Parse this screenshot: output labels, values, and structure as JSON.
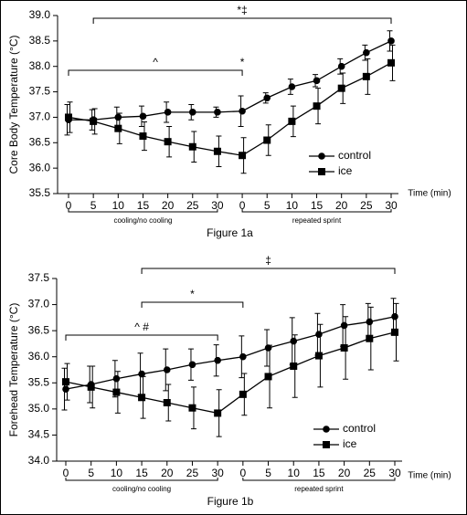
{
  "chart_data": [
    {
      "type": "line",
      "y_label": "Core Body Temperature (°C)",
      "x_label": "Time (min)",
      "caption": "Figure 1a",
      "categories": [
        "0",
        "5",
        "10",
        "15",
        "20",
        "25",
        "30",
        "0",
        "5",
        "10",
        "15",
        "20",
        "25",
        "30"
      ],
      "phases": [
        {
          "label": "cooling/no cooling"
        },
        {
          "label": "repeated sprint"
        }
      ],
      "ylim": [
        35.5,
        39.0
      ],
      "yticks": [
        35.5,
        {
          "value": 36.0,
          "label": "36.0"
        },
        36.5,
        {
          "value": 37.0,
          "label": "37.0"
        },
        37.5,
        {
          "value": 38.0,
          "label": "38.0"
        },
        38.5,
        {
          "value": 39.0,
          "label": "39.0"
        }
      ],
      "legend": "lower right",
      "series": [
        {
          "name": "control",
          "color": "#000000",
          "marker": "circle",
          "values": [
            36.95,
            36.95,
            37.0,
            37.02,
            37.1,
            37.1,
            37.1,
            37.12,
            37.38,
            37.6,
            37.72,
            38.0,
            38.27,
            38.5
          ],
          "errors": [
            0.3,
            0.2,
            0.2,
            0.2,
            0.2,
            0.15,
            0.1,
            0.3,
            0.1,
            0.15,
            0.12,
            0.15,
            0.15,
            0.2
          ]
        },
        {
          "name": "ice",
          "color": "#000000",
          "marker": "square",
          "values": [
            37.0,
            36.92,
            36.78,
            36.63,
            36.52,
            36.42,
            36.33,
            36.25,
            36.55,
            36.92,
            37.22,
            37.57,
            37.8,
            38.07
          ],
          "errors": [
            0.3,
            0.25,
            0.3,
            0.28,
            0.3,
            0.3,
            0.3,
            0.35,
            0.3,
            0.3,
            0.35,
            0.3,
            0.35,
            0.35
          ]
        }
      ],
      "annotations": [
        {
          "text": "*‡"
        },
        {
          "text": "^"
        },
        {
          "text": "*"
        }
      ]
    },
    {
      "type": "line",
      "y_label": "Forehead Temperature (°C)",
      "x_label": "Time (min)",
      "caption": "Figure 1b",
      "categories": [
        "0",
        "5",
        "10",
        "15",
        "20",
        "25",
        "30",
        "0",
        "5",
        "10",
        "15",
        "20",
        "25",
        "30"
      ],
      "phases": [
        {
          "label": "cooling/no cooling"
        },
        {
          "label": "repeated sprint"
        }
      ],
      "ylim": [
        34.0,
        37.5
      ],
      "yticks": [
        {
          "value": 34.0,
          "label": "34.0"
        },
        34.5,
        {
          "value": 35.0,
          "label": "35.0"
        },
        35.5,
        {
          "value": 36.0,
          "label": "36.0"
        },
        36.5,
        {
          "value": 37.0,
          "label": "37.0"
        },
        37.5
      ],
      "legend": "lower right",
      "series": [
        {
          "name": "control",
          "color": "#000000",
          "marker": "circle",
          "values": [
            35.38,
            35.47,
            35.58,
            35.67,
            35.75,
            35.85,
            35.93,
            36.0,
            36.17,
            36.3,
            36.43,
            36.6,
            36.67,
            36.77
          ],
          "errors": [
            0.4,
            0.35,
            0.35,
            0.4,
            0.4,
            0.3,
            0.3,
            0.4,
            0.35,
            0.45,
            0.4,
            0.4,
            0.35,
            0.35
          ]
        },
        {
          "name": "ice",
          "color": "#000000",
          "marker": "square",
          "values": [
            35.52,
            35.42,
            35.32,
            35.22,
            35.12,
            35.02,
            34.92,
            35.28,
            35.62,
            35.82,
            36.02,
            36.17,
            36.35,
            36.47
          ],
          "errors": [
            0.35,
            0.4,
            0.4,
            0.4,
            0.35,
            0.4,
            0.45,
            0.4,
            0.6,
            0.6,
            0.6,
            0.6,
            0.6,
            0.55
          ]
        }
      ],
      "annotations": [
        {
          "text": "‡"
        },
        {
          "text": "*"
        },
        {
          "text": "^ #"
        }
      ]
    }
  ]
}
